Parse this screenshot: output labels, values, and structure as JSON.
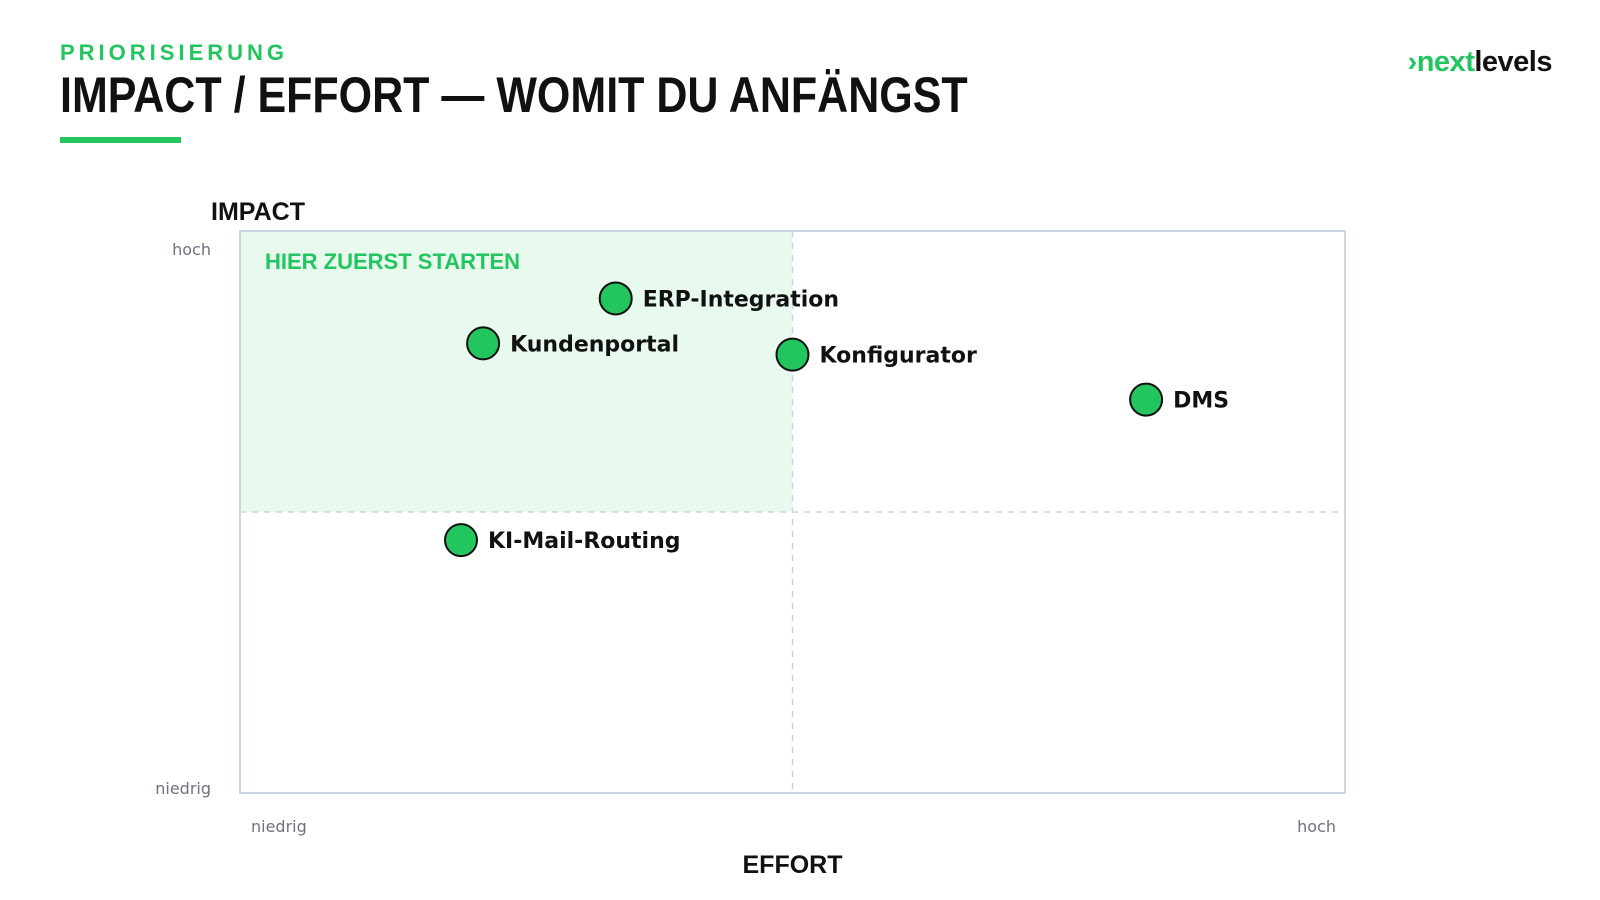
{
  "header": {
    "eyebrow": "PRIORISIERUNG",
    "title": "IMPACT / EFFORT — WOMIT DU ANFÄNGST"
  },
  "logo": {
    "arrow": "›",
    "next": "next",
    "levels": "levels"
  },
  "colors": {
    "accent": "#22c55e",
    "highlight_zone": "#e8f9ee",
    "point_fill": "#22c55e",
    "point_stroke": "#111111",
    "frame": "#cbd5e1",
    "divider": "#cbd5e1",
    "text": "#111111",
    "muted": "#6b7280"
  },
  "chart_data": {
    "type": "scatter",
    "title": "",
    "xlabel": "EFFORT",
    "ylabel": "IMPACT",
    "x_ticks": {
      "low": "niedrig",
      "high": "hoch"
    },
    "y_ticks": {
      "low": "niedrig",
      "high": "hoch"
    },
    "xlim": [
      0,
      1
    ],
    "ylim": [
      0,
      1
    ],
    "grid": false,
    "quadrant_split": {
      "x": 0.5,
      "y": 0.5
    },
    "highlight_zone": {
      "label": "HIER ZUERST STARTEN",
      "x": [
        0,
        0.5
      ],
      "y": [
        0.5,
        1
      ]
    },
    "points": [
      {
        "label": "ERP-Integration",
        "x": 0.34,
        "y": 0.88
      },
      {
        "label": "Kundenportal",
        "x": 0.22,
        "y": 0.8
      },
      {
        "label": "Konfigurator",
        "x": 0.5,
        "y": 0.78
      },
      {
        "label": "DMS",
        "x": 0.82,
        "y": 0.7
      },
      {
        "label": "KI-Mail-Routing",
        "x": 0.2,
        "y": 0.45
      }
    ]
  }
}
